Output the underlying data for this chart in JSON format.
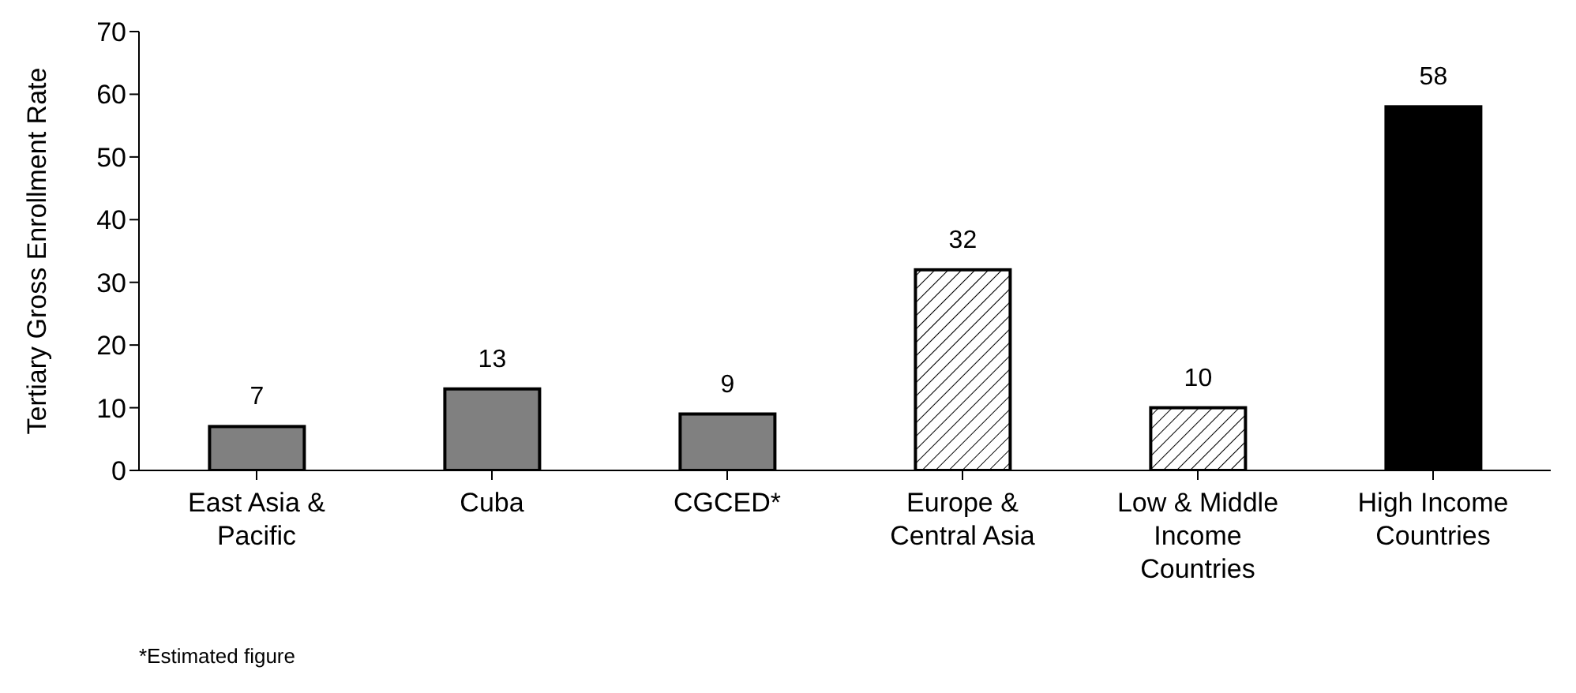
{
  "chart_data": {
    "type": "bar",
    "ylabel": "Tertiary Gross Enrollment Rate",
    "categories": [
      "East Asia & Pacific",
      "Cuba",
      "CGCED*",
      "Europe & Central Asia",
      "Low & Middle Income Countries",
      "High Income Countries"
    ],
    "values": [
      7,
      13,
      9,
      32,
      10,
      58
    ],
    "colors": [
      "#808080",
      "#808080",
      "#808080",
      "#ffffff",
      "#ffffff",
      "#000000"
    ],
    "ylim": [
      0,
      70
    ],
    "yticks": [
      0,
      10,
      20,
      30,
      40,
      50,
      60,
      70
    ],
    "grid": false,
    "data_labels": true,
    "annotations": [
      "*Estimated figure"
    ]
  }
}
